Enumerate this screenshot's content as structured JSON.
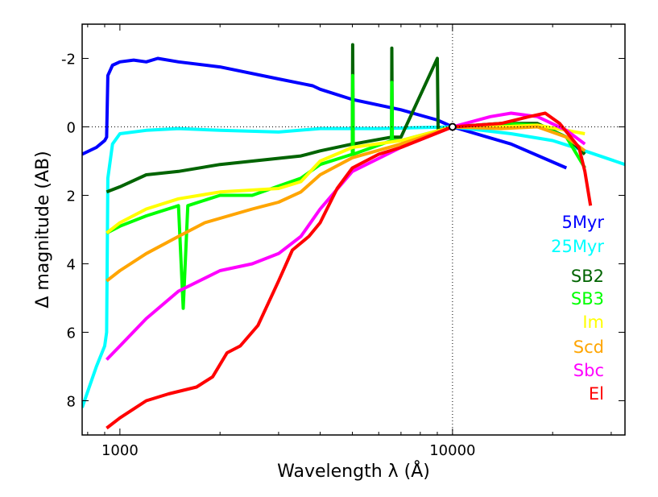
{
  "chart_data": {
    "type": "line",
    "title": "",
    "xlabel": "Wavelength  λ (Å)",
    "ylabel": "Δ magnitude (AB)",
    "xscale": "log",
    "xlim": [
      770,
      33000
    ],
    "ylim": [
      9,
      -3
    ],
    "y_inverted": true,
    "x_ticks": [
      1000,
      10000
    ],
    "x_tick_labels": [
      "1000",
      "10000"
    ],
    "y_ticks": [
      -2,
      0,
      2,
      4,
      6,
      8
    ],
    "y_tick_labels": [
      "-2",
      "0",
      "2",
      "4",
      "6",
      "8"
    ],
    "reference_lines": {
      "x": 10000,
      "y": 0
    },
    "normalization_point": [
      10000,
      0
    ],
    "legend_placement": "right",
    "series": [
      {
        "name": "5Myr",
        "color": "#0000ff",
        "points": [
          [
            770,
            0.8
          ],
          [
            850,
            0.6
          ],
          [
            900,
            0.4
          ],
          [
            912,
            0.3
          ],
          [
            920,
            -1.5
          ],
          [
            950,
            -1.8
          ],
          [
            1000,
            -1.9
          ],
          [
            1100,
            -1.95
          ],
          [
            1200,
            -1.9
          ],
          [
            1300,
            -2.0
          ],
          [
            1500,
            -1.9
          ],
          [
            2000,
            -1.75
          ],
          [
            3000,
            -1.4
          ],
          [
            3800,
            -1.2
          ],
          [
            4000,
            -1.1
          ],
          [
            5000,
            -0.8
          ],
          [
            7000,
            -0.5
          ],
          [
            9000,
            -0.2
          ],
          [
            10000,
            0
          ],
          [
            15000,
            0.5
          ],
          [
            22000,
            1.2
          ]
        ]
      },
      {
        "name": "25Myr",
        "color": "#00ffff",
        "points": [
          [
            770,
            8.2
          ],
          [
            850,
            7.0
          ],
          [
            900,
            6.4
          ],
          [
            912,
            6.0
          ],
          [
            920,
            1.5
          ],
          [
            950,
            0.5
          ],
          [
            1000,
            0.2
          ],
          [
            1200,
            0.1
          ],
          [
            1500,
            0.05
          ],
          [
            2000,
            0.1
          ],
          [
            3000,
            0.15
          ],
          [
            4000,
            0.05
          ],
          [
            6000,
            0.05
          ],
          [
            10000,
            0
          ],
          [
            15000,
            0.2
          ],
          [
            20000,
            0.4
          ],
          [
            25000,
            0.7
          ],
          [
            33000,
            1.1
          ]
        ]
      },
      {
        "name": "SB2",
        "color": "#006400",
        "points": [
          [
            912,
            1.9
          ],
          [
            1000,
            1.75
          ],
          [
            1200,
            1.4
          ],
          [
            1500,
            1.3
          ],
          [
            2000,
            1.1
          ],
          [
            2500,
            1.0
          ],
          [
            3500,
            0.85
          ],
          [
            4000,
            0.7
          ],
          [
            5000,
            0.5
          ],
          [
            5010,
            -2.4
          ],
          [
            5030,
            0.5
          ],
          [
            6560,
            0.3
          ],
          [
            6570,
            -2.3
          ],
          [
            6590,
            0.3
          ],
          [
            7000,
            0.3
          ],
          [
            9000,
            -2.0
          ],
          [
            9050,
            0.1
          ],
          [
            10000,
            0
          ],
          [
            14000,
            -0.1
          ],
          [
            18000,
            -0.1
          ],
          [
            22000,
            0.3
          ],
          [
            25000,
            0.8
          ]
        ]
      },
      {
        "name": "SB3",
        "color": "#00ff00",
        "points": [
          [
            912,
            3.1
          ],
          [
            1000,
            2.9
          ],
          [
            1200,
            2.6
          ],
          [
            1500,
            2.3
          ],
          [
            1550,
            5.3
          ],
          [
            1600,
            2.3
          ],
          [
            2000,
            2.0
          ],
          [
            2500,
            2.0
          ],
          [
            3500,
            1.5
          ],
          [
            4000,
            1.1
          ],
          [
            5000,
            0.8
          ],
          [
            5010,
            -1.5
          ],
          [
            5030,
            0.8
          ],
          [
            6560,
            0.4
          ],
          [
            6570,
            -1.3
          ],
          [
            6590,
            0.4
          ],
          [
            7000,
            0.4
          ],
          [
            10000,
            0
          ],
          [
            14000,
            -0.1
          ],
          [
            18000,
            -0.05
          ],
          [
            22000,
            0.3
          ],
          [
            25000,
            1.2
          ]
        ]
      },
      {
        "name": "Im",
        "color": "#ffff00",
        "points": [
          [
            912,
            3.1
          ],
          [
            1000,
            2.8
          ],
          [
            1200,
            2.4
          ],
          [
            1500,
            2.1
          ],
          [
            2000,
            1.9
          ],
          [
            3000,
            1.8
          ],
          [
            3500,
            1.6
          ],
          [
            4000,
            1.0
          ],
          [
            5000,
            0.6
          ],
          [
            7000,
            0.4
          ],
          [
            10000,
            0
          ],
          [
            14000,
            0.0
          ],
          [
            18000,
            -0.05
          ],
          [
            22000,
            0.1
          ],
          [
            25000,
            0.2
          ]
        ]
      },
      {
        "name": "Scd",
        "color": "#ffa500",
        "points": [
          [
            912,
            4.5
          ],
          [
            1000,
            4.2
          ],
          [
            1200,
            3.7
          ],
          [
            1500,
            3.2
          ],
          [
            1800,
            2.8
          ],
          [
            2500,
            2.4
          ],
          [
            3000,
            2.2
          ],
          [
            3500,
            1.9
          ],
          [
            4000,
            1.4
          ],
          [
            5000,
            0.9
          ],
          [
            7000,
            0.5
          ],
          [
            10000,
            0
          ],
          [
            14000,
            0.05
          ],
          [
            18000,
            0.0
          ],
          [
            22000,
            0.3
          ],
          [
            25000,
            0.7
          ]
        ]
      },
      {
        "name": "Sbc",
        "color": "#ff00ff",
        "points": [
          [
            912,
            6.8
          ],
          [
            1000,
            6.4
          ],
          [
            1200,
            5.6
          ],
          [
            1500,
            4.8
          ],
          [
            2000,
            4.2
          ],
          [
            2500,
            4.0
          ],
          [
            3000,
            3.7
          ],
          [
            3500,
            3.2
          ],
          [
            4000,
            2.4
          ],
          [
            5000,
            1.3
          ],
          [
            7000,
            0.6
          ],
          [
            10000,
            0
          ],
          [
            13000,
            -0.3
          ],
          [
            15000,
            -0.4
          ],
          [
            18000,
            -0.3
          ],
          [
            22000,
            0.1
          ],
          [
            25000,
            0.5
          ]
        ]
      },
      {
        "name": "El",
        "color": "#ff0000",
        "points": [
          [
            912,
            8.8
          ],
          [
            1000,
            8.5
          ],
          [
            1200,
            8.0
          ],
          [
            1400,
            7.8
          ],
          [
            1700,
            7.6
          ],
          [
            1900,
            7.3
          ],
          [
            2100,
            6.6
          ],
          [
            2300,
            6.4
          ],
          [
            2600,
            5.8
          ],
          [
            3000,
            4.5
          ],
          [
            3300,
            3.6
          ],
          [
            3700,
            3.2
          ],
          [
            4000,
            2.8
          ],
          [
            4500,
            1.8
          ],
          [
            5000,
            1.2
          ],
          [
            6000,
            0.8
          ],
          [
            7000,
            0.6
          ],
          [
            10000,
            0
          ],
          [
            14000,
            -0.1
          ],
          [
            17000,
            -0.3
          ],
          [
            19000,
            -0.4
          ],
          [
            21000,
            -0.1
          ],
          [
            24000,
            0.6
          ],
          [
            25000,
            1.3
          ],
          [
            26000,
            2.3
          ]
        ]
      }
    ]
  }
}
